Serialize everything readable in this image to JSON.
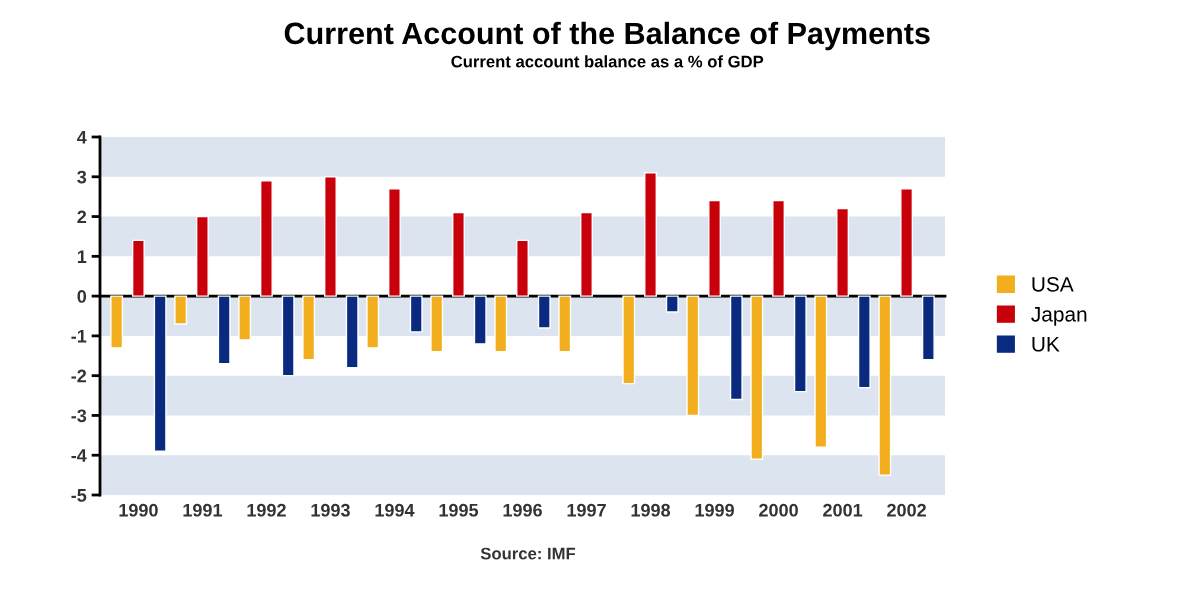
{
  "chart_data": {
    "type": "bar",
    "title": "Current Account of the Balance of Payments",
    "subtitle": "Current account balance as a % of GDP",
    "categories": [
      "1990",
      "1991",
      "1992",
      "1993",
      "1994",
      "1995",
      "1996",
      "1997",
      "1998",
      "1999",
      "2000",
      "2001",
      "2002"
    ],
    "series": [
      {
        "name": "USA",
        "color": "#f2ae1c",
        "values": [
          -1.3,
          -0.7,
          -1.1,
          -1.6,
          -1.3,
          -1.4,
          -1.4,
          -1.4,
          -2.2,
          -3.0,
          -4.1,
          -3.8,
          -4.5
        ]
      },
      {
        "name": "Japan",
        "color": "#c8000a",
        "values": [
          1.4,
          2.0,
          2.9,
          3.0,
          2.7,
          2.1,
          1.4,
          2.1,
          3.1,
          2.4,
          2.4,
          2.2,
          2.7
        ]
      },
      {
        "name": "UK",
        "color": "#0a2a80",
        "values": [
          -3.9,
          -1.7,
          -2.0,
          -1.8,
          -0.9,
          -1.2,
          -0.8,
          null,
          -0.4,
          -2.6,
          -2.4,
          -2.3,
          -1.6
        ]
      }
    ],
    "ylim": [
      -5,
      4
    ],
    "yticks": [
      -5,
      -4,
      -3,
      -2,
      -1,
      0,
      1,
      2,
      3,
      4
    ],
    "bands": [
      {
        "axis": "y",
        "from": 3,
        "to": 4,
        "color": "#dbe4ef"
      },
      {
        "axis": "y",
        "from": 1,
        "to": 2,
        "color": "#dbe4ef"
      },
      {
        "axis": "y",
        "from": -1,
        "to": 0,
        "color": "#dbe4ef"
      },
      {
        "axis": "y",
        "from": -3,
        "to": -2,
        "color": "#dbe4ef"
      },
      {
        "axis": "y",
        "from": -5,
        "to": -4,
        "color": "#dbe4ef"
      }
    ],
    "annotations": [
      "Source: IMF"
    ],
    "legend": "right"
  }
}
